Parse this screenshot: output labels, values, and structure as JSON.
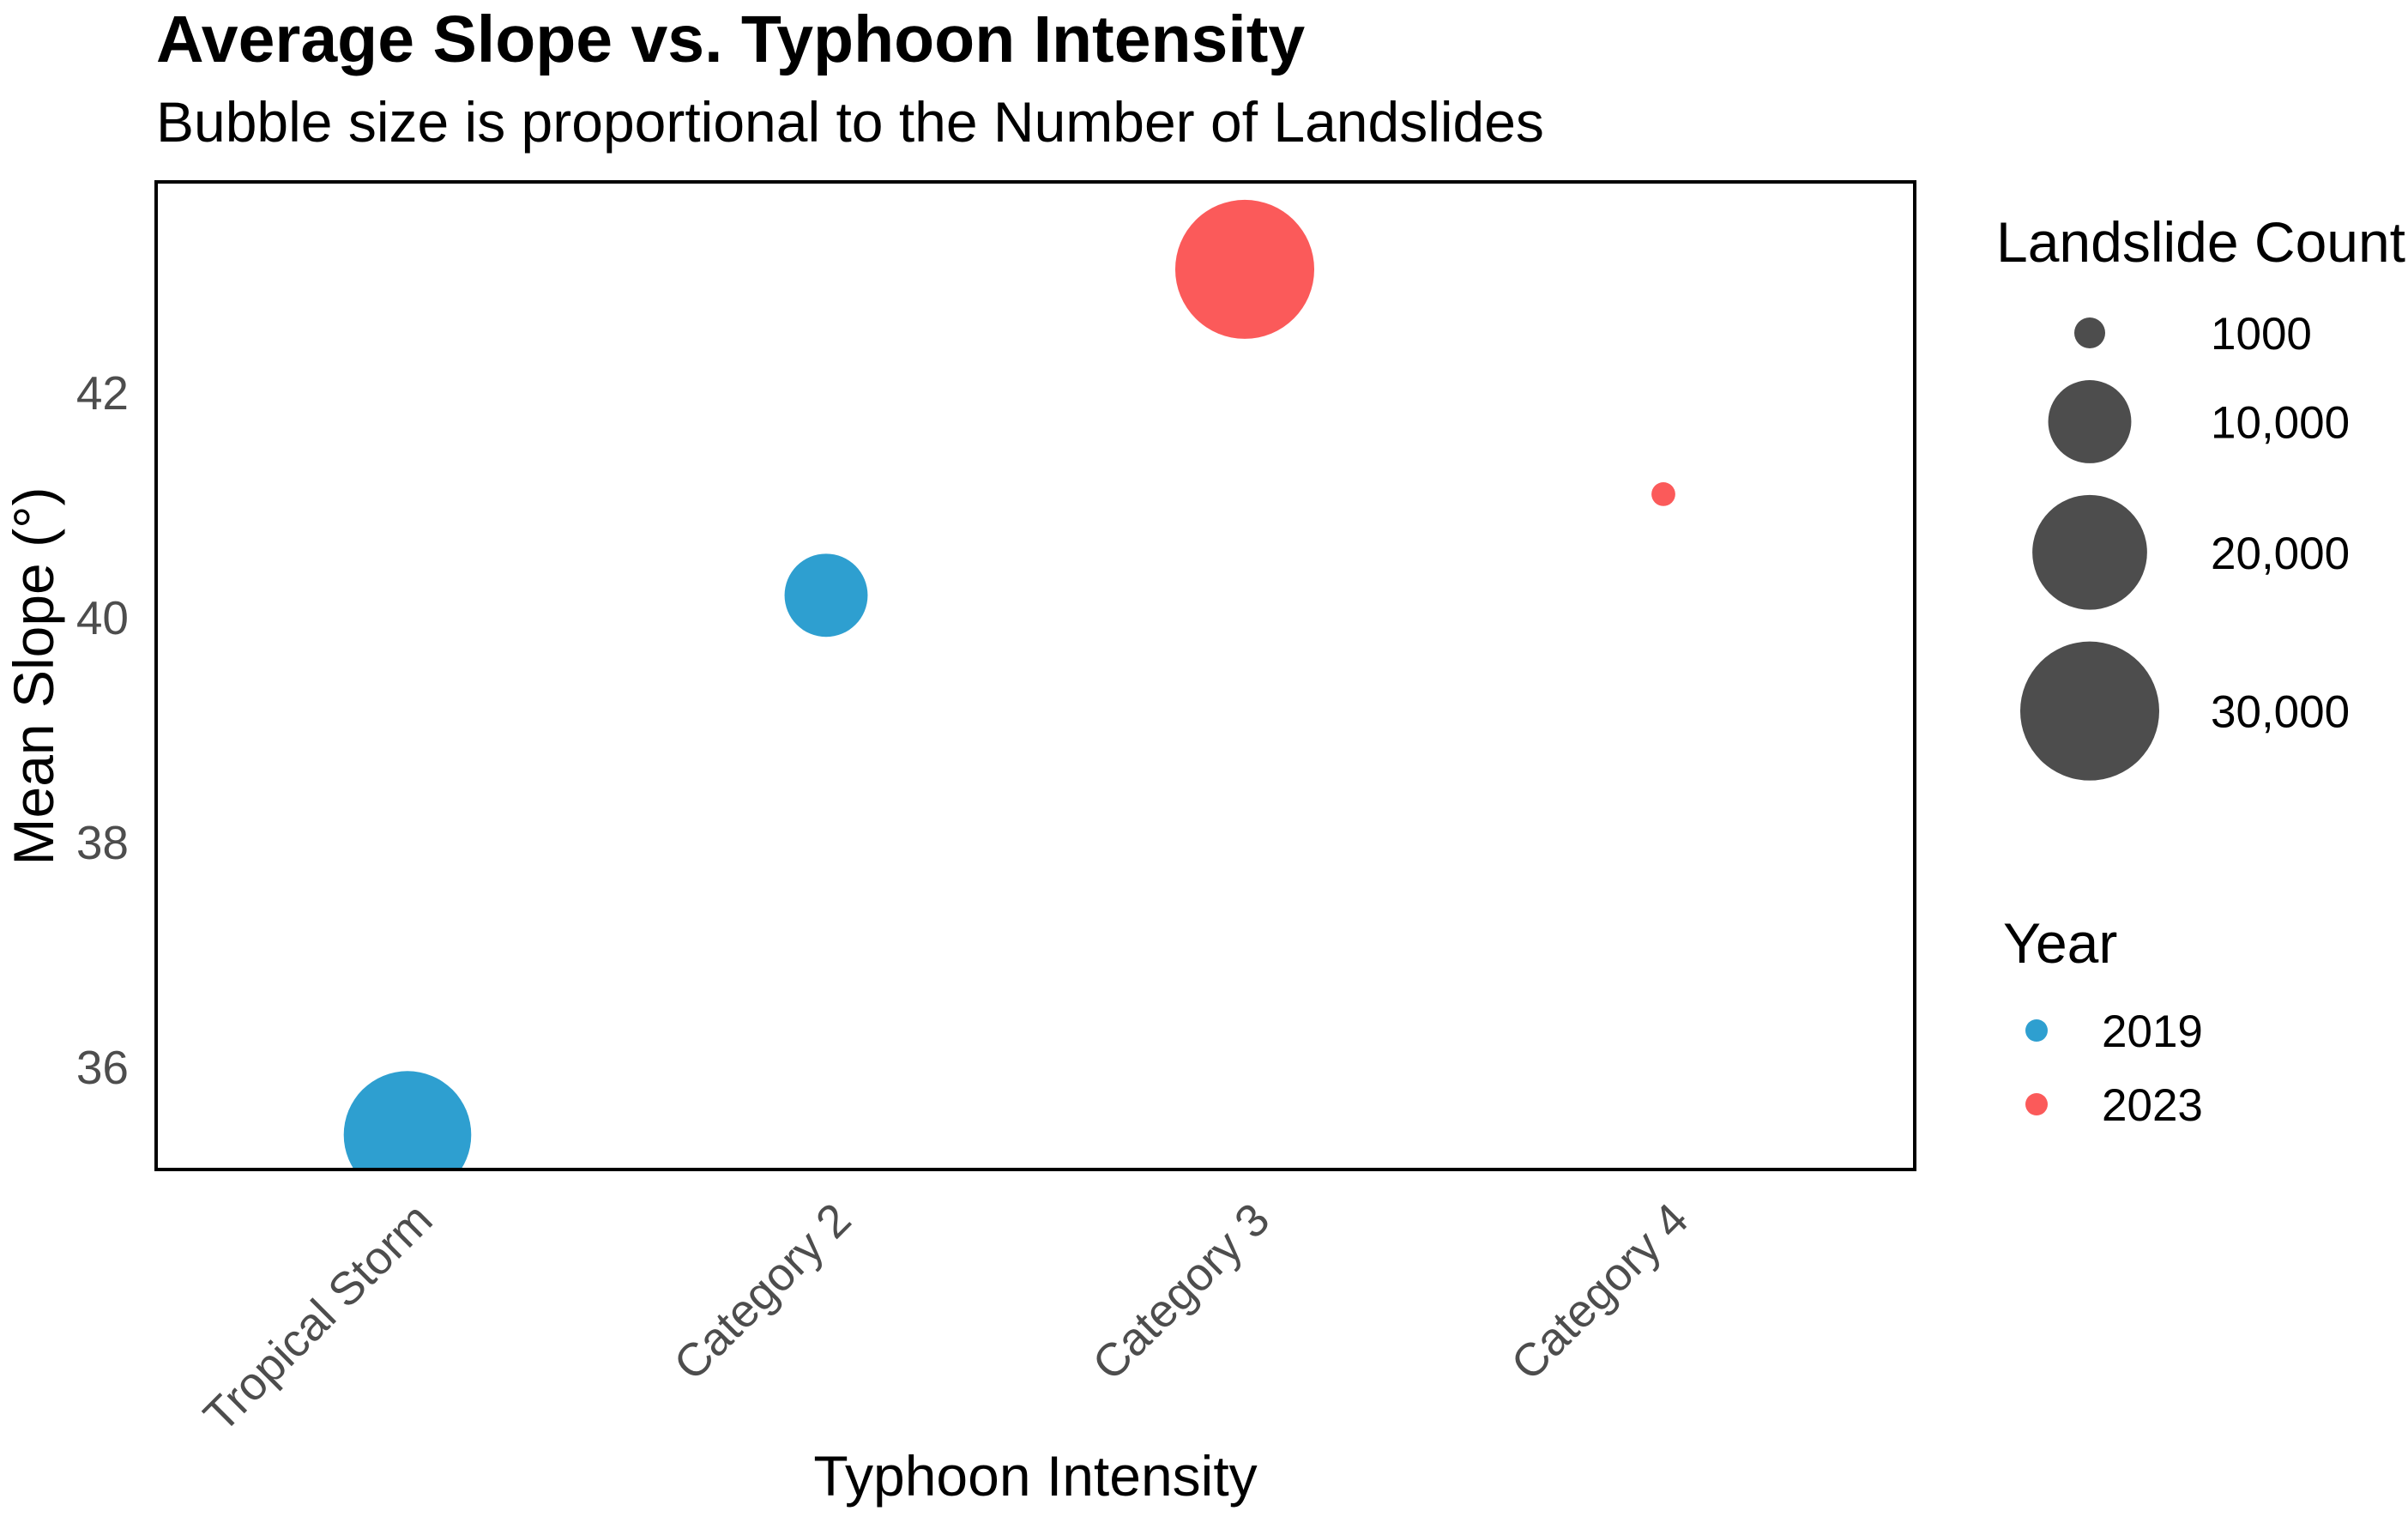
{
  "title": "Average Slope vs. Typhoon Intensity",
  "subtitle": "Bubble size is proportional to the Number of Landslides",
  "chart_data": {
    "type": "scatter",
    "xlabel": "Typhoon Intensity",
    "ylabel": "Mean Slope (°)",
    "categories": [
      "Tropical Storm",
      "Category 2",
      "Category 3",
      "Category 4"
    ],
    "y_ticks": [
      36,
      38,
      40,
      42
    ],
    "ylim": [
      35.1,
      43.9
    ],
    "grid": false,
    "series": [
      {
        "name": "2019",
        "color": "#2E9FD0",
        "points": [
          {
            "category": "Tropical Storm",
            "mean_slope": 35.4,
            "landslide_count": 25000
          },
          {
            "category": "Category 2",
            "mean_slope": 40.2,
            "landslide_count": 10000
          }
        ]
      },
      {
        "name": "2023",
        "color": "#FB5A5A",
        "points": [
          {
            "category": "Category 3",
            "mean_slope": 43.1,
            "landslide_count": 30000
          },
          {
            "category": "Category 4",
            "mean_slope": 41.1,
            "landslide_count": 500
          }
        ]
      }
    ],
    "size_legend": {
      "title": "Landslide Count",
      "values": [
        1000,
        10000,
        20000,
        30000
      ],
      "labels": [
        "1000",
        "10,000",
        "20,000",
        "30,000"
      ],
      "circle_color": "#4D4D4D"
    },
    "color_legend": {
      "title": "Year",
      "entries": [
        {
          "label": "2019",
          "color": "#2E9FD0"
        },
        {
          "label": "2023",
          "color": "#FB5A5A"
        }
      ]
    }
  }
}
